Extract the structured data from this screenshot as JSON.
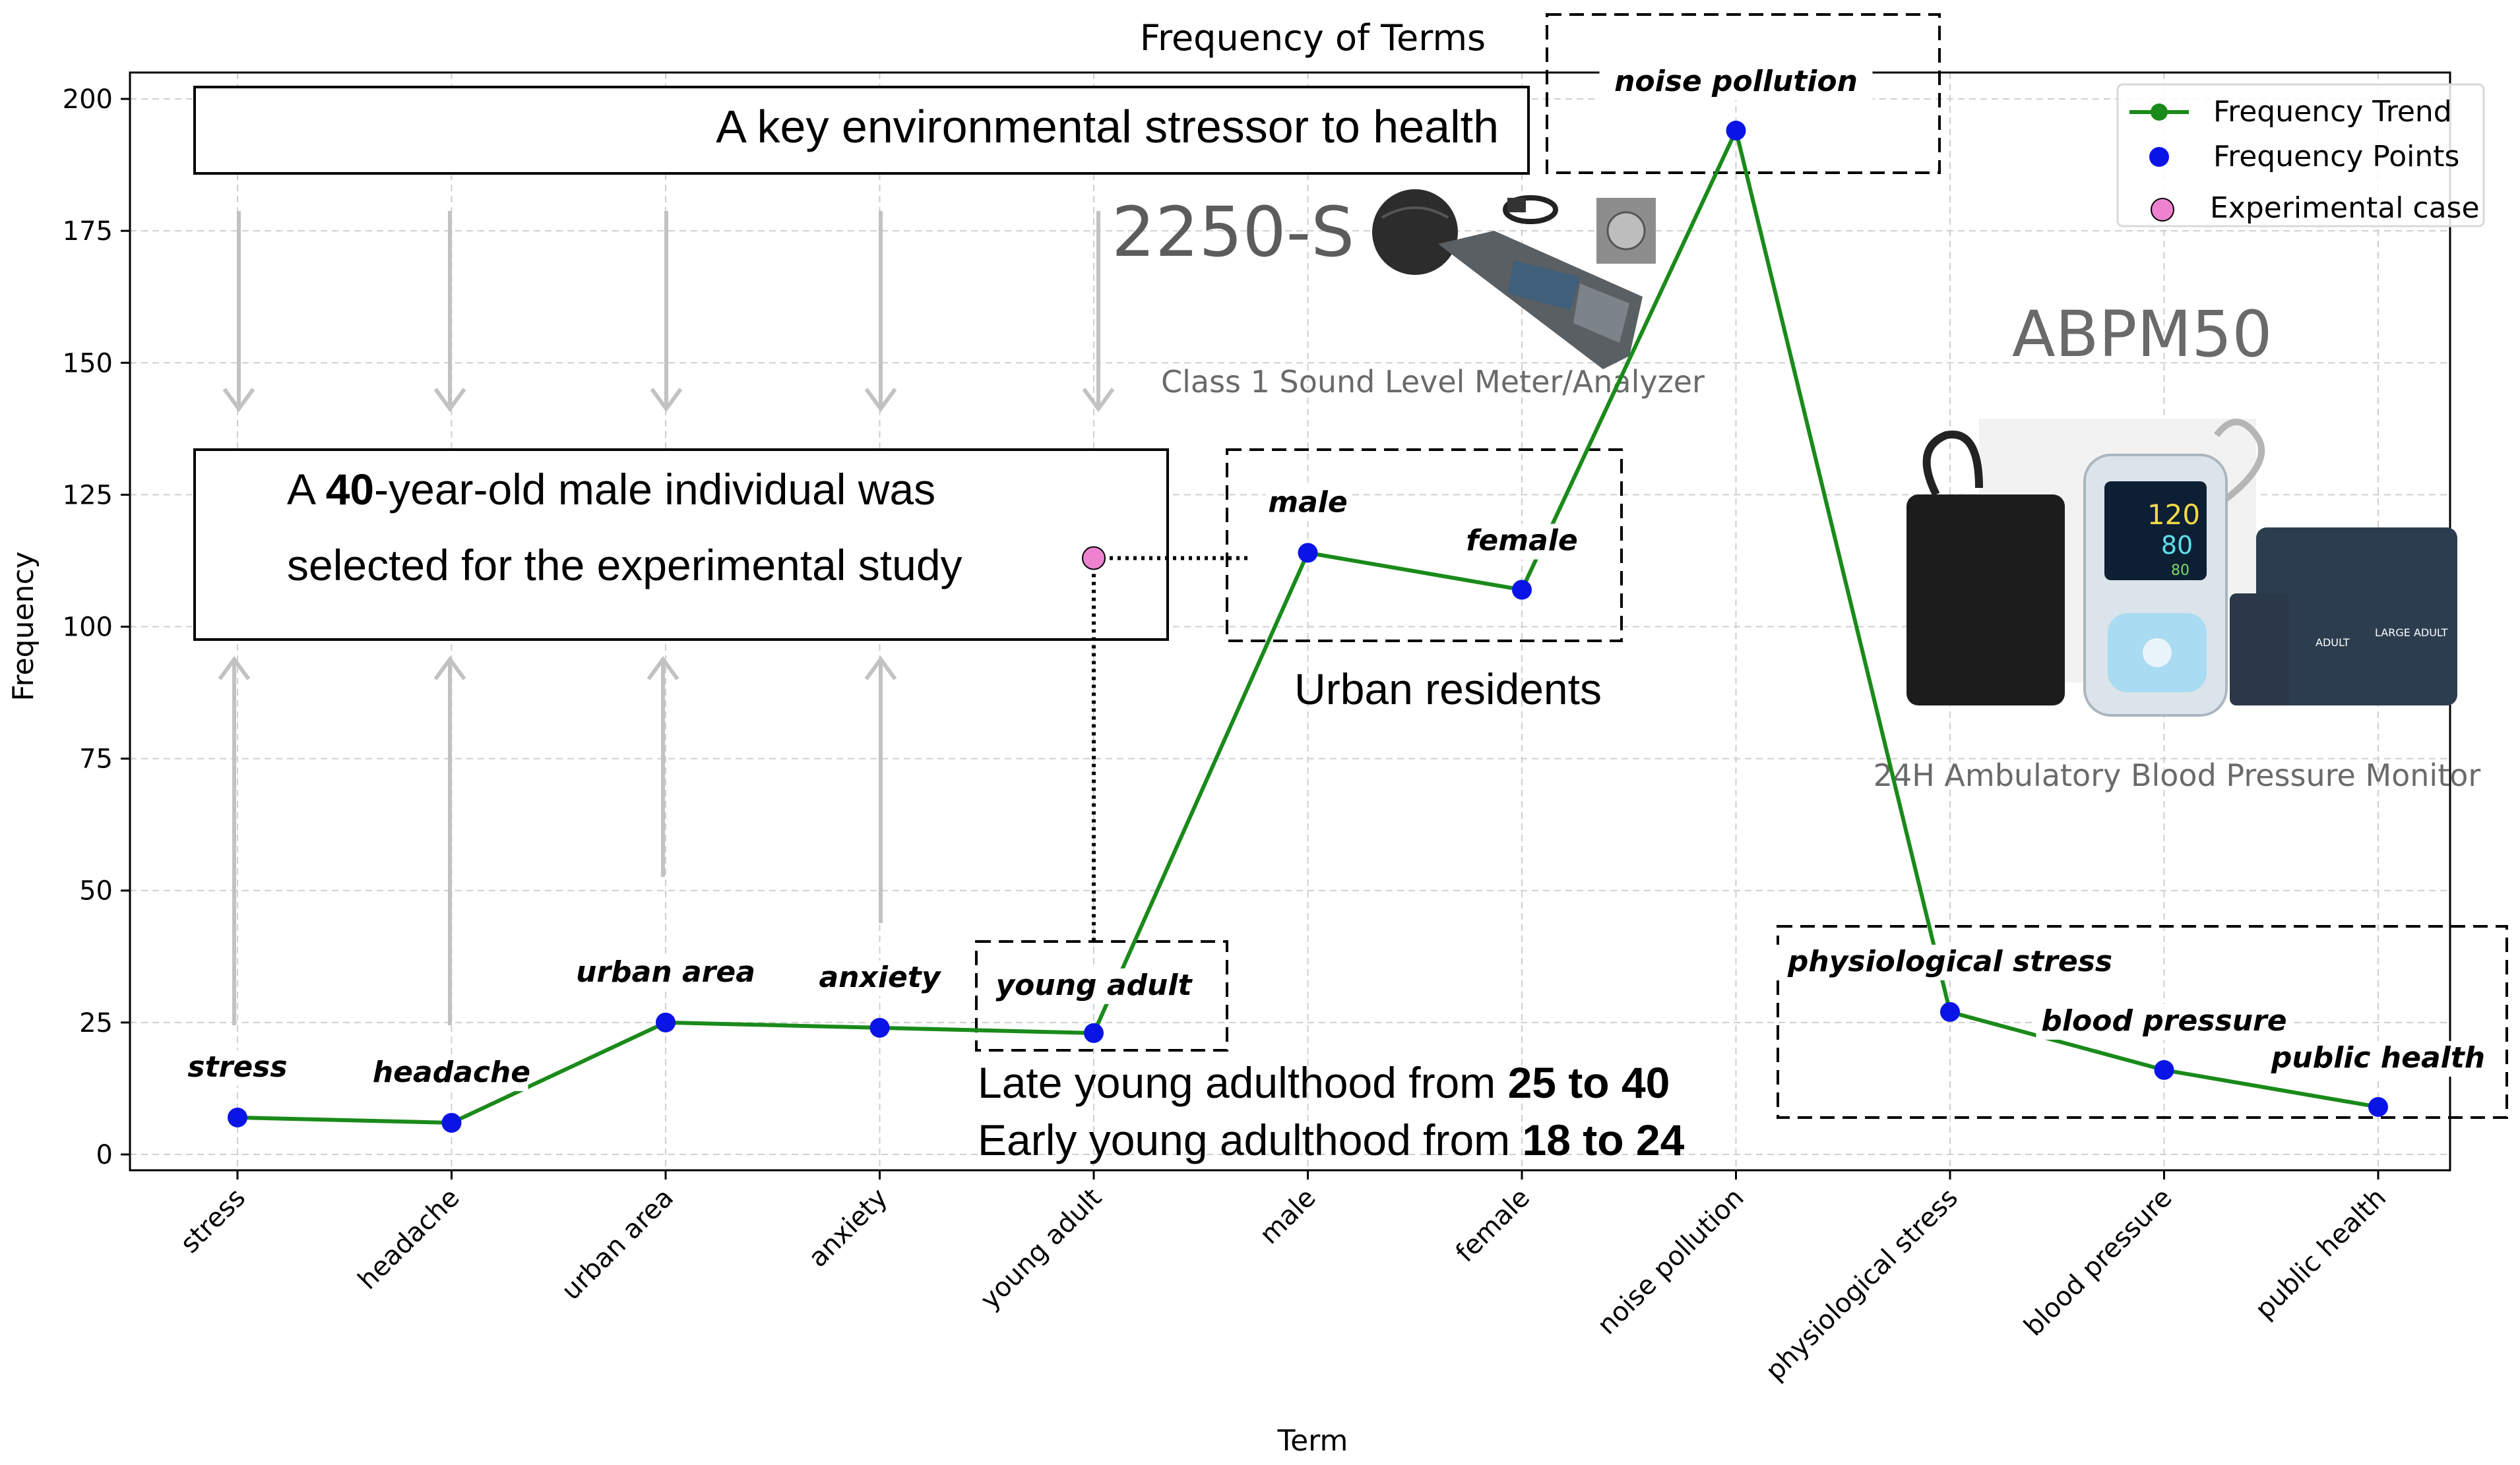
{
  "chart_data": {
    "type": "line",
    "title": "Frequency of Terms",
    "xlabel": "Term",
    "ylabel": "Frequency",
    "ylim": [
      -3,
      205
    ],
    "yticks": [
      0,
      25,
      50,
      75,
      100,
      125,
      150,
      175,
      200
    ],
    "grid": true,
    "categories": [
      "stress",
      "headache",
      "urban area",
      "anxiety",
      "young adult",
      "male",
      "female",
      "noise pollution",
      "physiological stress",
      "blood pressure",
      "public health"
    ],
    "series": [
      {
        "name": "Frequency Trend",
        "values": [
          7,
          6,
          25,
          24,
          23,
          114,
          107,
          194,
          27,
          16,
          9
        ],
        "color": "#1a8a1a"
      }
    ],
    "experimental_case": {
      "name": "Experimental case",
      "x_between": [
        "young adult",
        "male"
      ],
      "x_offset": 0.0,
      "value": 113,
      "color": "#ee82cf"
    },
    "legend": {
      "position": "top-right",
      "entries": [
        "Frequency Trend",
        "Frequency Points",
        "Experimental case"
      ]
    },
    "annotations": {
      "stressor_box": "A key environmental stressor to health",
      "individual_line1_pre": "A ",
      "individual_age": "40",
      "individual_line1_post": "-year-old male individual was",
      "individual_line2": "selected for the experimental study",
      "urban_residents": "Urban residents",
      "late_young_text": "Late young adulthood from ",
      "late_young_range": "25 to 40",
      "early_young_text": "Early young adulthood from ",
      "early_young_range": "18 to 24",
      "device1_model": "2250-S",
      "device1_caption": "Class 1 Sound Level Meter/Analyzer",
      "device2_model": "ABPM50",
      "device2_caption": "24H Ambulatory Blood Pressure Monitor",
      "bp_display_sys": "120",
      "bp_display_dia": "80",
      "bp_display_pulse": "80",
      "cuff_label": "LARGE ADULT",
      "cuff_label2": "ADULT"
    },
    "colors": {
      "line": "#1a8a1a",
      "points": "#0a14e6",
      "experimental": "#ee82cf",
      "arrows": "#c2c2c2"
    }
  }
}
